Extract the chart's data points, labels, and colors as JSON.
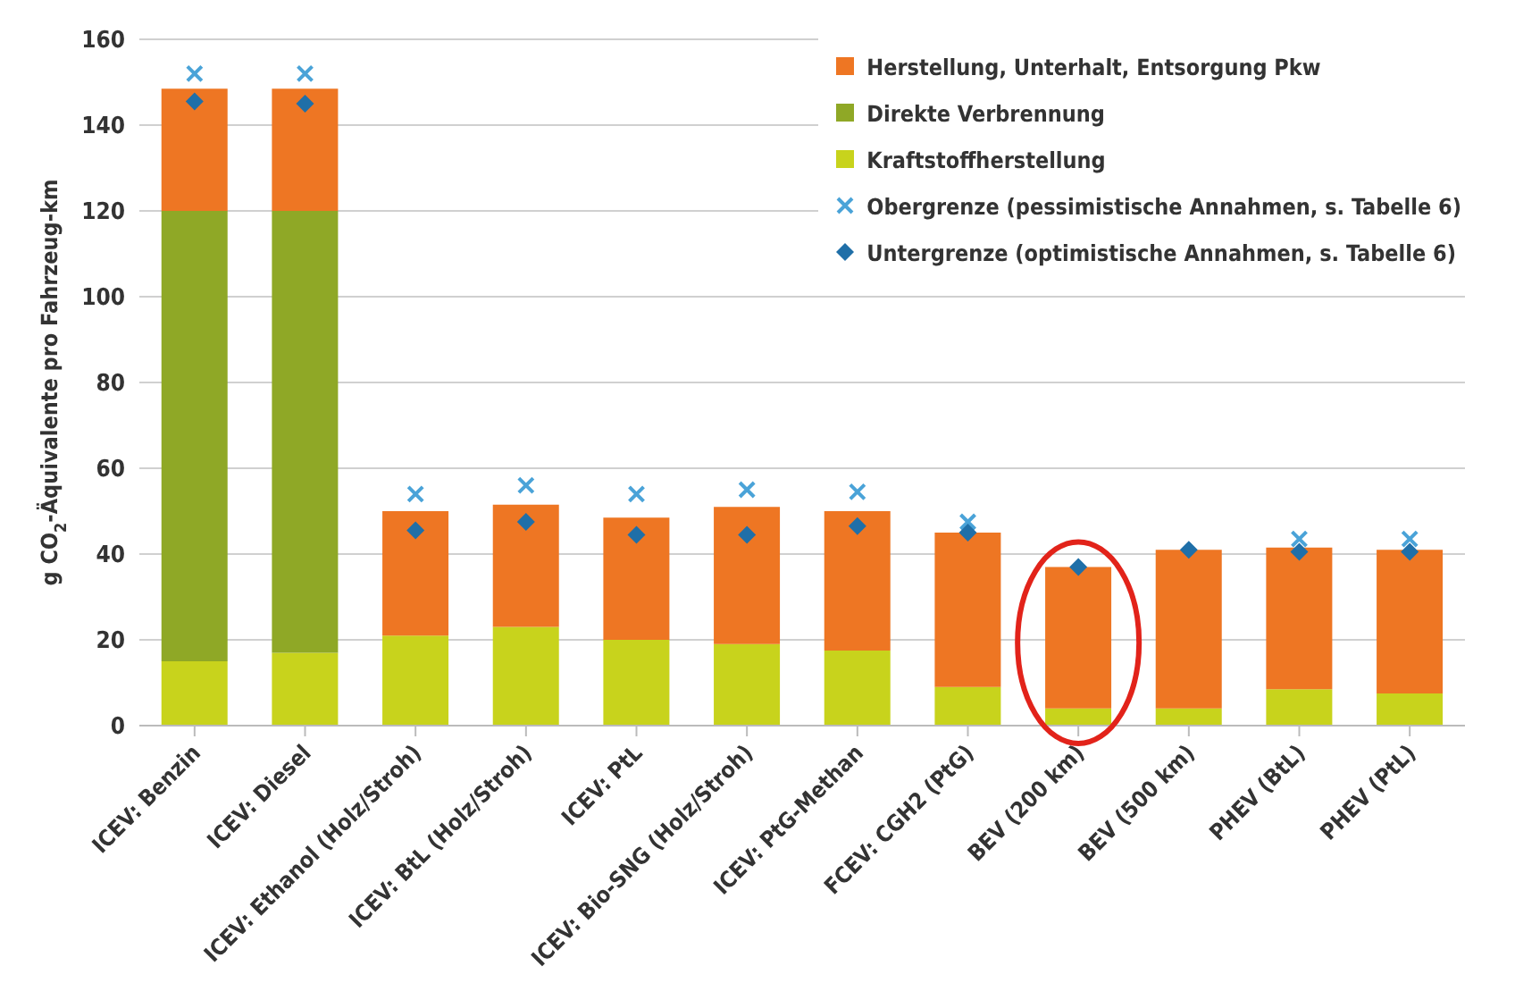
{
  "chart_data": {
    "type": "bar",
    "stacked": true,
    "ylabel": "g CO$_{2}$-Äquivalente pro Fahrzeug-km",
    "categories": [
      "ICEV: Benzin",
      "ICEV: Diesel",
      "ICEV: Ethanol (Holz/Stroh)",
      "ICEV: BtL (Holz/Stroh)",
      "ICEV: PtL",
      "ICEV: Bio-SNG (Holz/Stroh)",
      "ICEV: PtG-Methan",
      "FCEV: CGH2 (PtG)",
      "BEV (200 km)",
      "BEV (500 km)",
      "PHEV (BtL)",
      "PHEV (PtL)"
    ],
    "series": [
      {
        "name": "Kraftstoffherstellung",
        "color": "#c8d31c",
        "values": [
          15,
          17,
          21,
          23,
          20,
          19,
          17.5,
          9,
          4,
          4,
          8.5,
          7.5
        ]
      },
      {
        "name": "Direkte Verbrennung",
        "color": "#8fa826",
        "values": [
          105,
          103,
          0,
          0,
          0,
          0,
          0,
          0,
          0,
          0,
          0,
          0
        ]
      },
      {
        "name": "Herstellung, Unterhalt, Entsorgung Pkw",
        "color": "#ee7623",
        "values": [
          28.5,
          28.5,
          29,
          28.5,
          28.5,
          32,
          32.5,
          36,
          33,
          37,
          33,
          33.5
        ]
      },
      {
        "name": "Obergrenze (pessimistische Annahmen, s. Tabelle 6)",
        "type": "scatter",
        "marker": "cross",
        "color": "#4aa3d8",
        "values": [
          152,
          152,
          54,
          56,
          54,
          55,
          54.5,
          47.5,
          null,
          null,
          43.5,
          43.5
        ]
      },
      {
        "name": "Untergrenze (optimistische Annahmen, s. Tabelle 6)",
        "type": "scatter",
        "marker": "diamond",
        "color": "#1f6fa8",
        "values": [
          145.5,
          145,
          45.5,
          47.5,
          44.5,
          44.5,
          46.5,
          45,
          37,
          41,
          40.5,
          40.5
        ]
      }
    ],
    "ylim": [
      0,
      160
    ],
    "yticks": [
      0,
      20,
      40,
      60,
      80,
      100,
      120,
      140,
      160
    ],
    "grid": "y",
    "legend": "top right"
  }
}
